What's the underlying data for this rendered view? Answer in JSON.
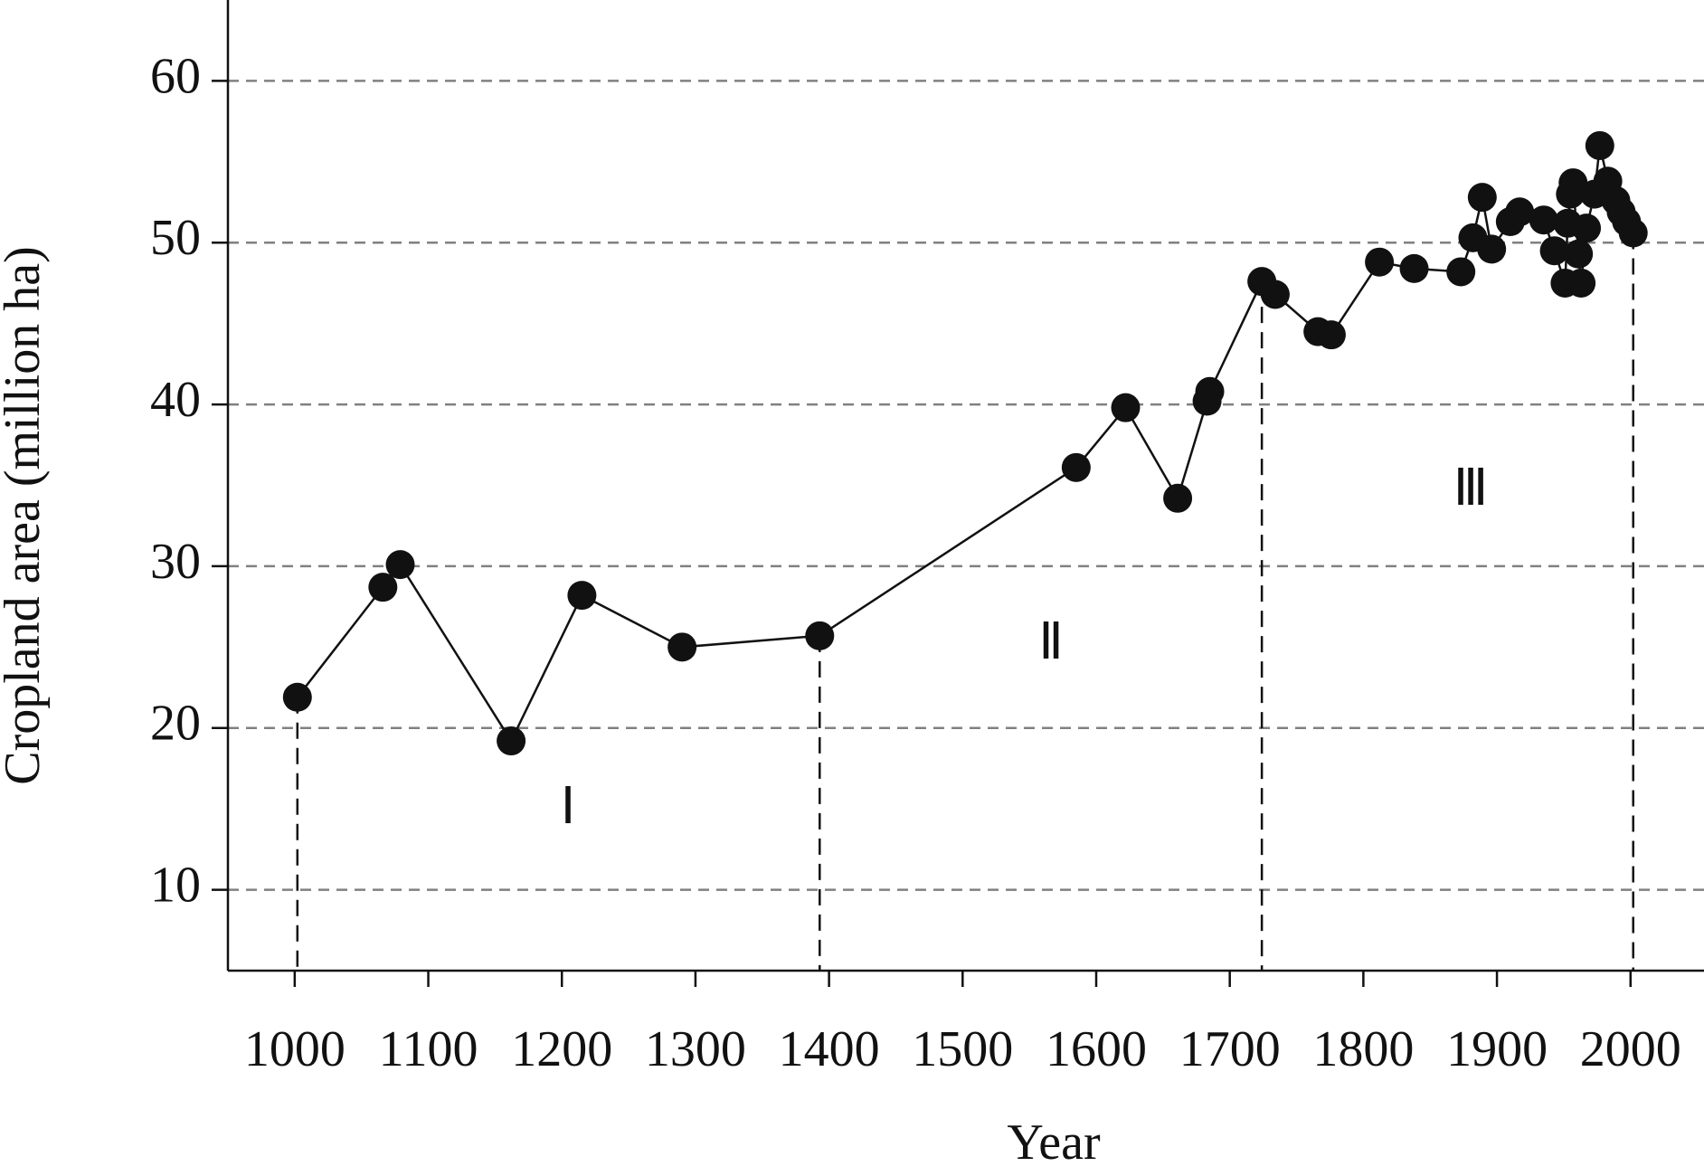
{
  "chart_data": {
    "type": "line",
    "x_label": "Year",
    "y_label": "Cropland area (million ha)",
    "x": [
      1002,
      1066,
      1079,
      1162,
      1215,
      1290,
      1393,
      1585,
      1622,
      1661,
      1683,
      1685,
      1724,
      1734,
      1766,
      1776,
      1812,
      1838,
      1873,
      1882,
      1889,
      1896,
      1910,
      1917,
      1935,
      1943,
      1951,
      1953,
      1955,
      1957,
      1961,
      1963,
      1967,
      1973,
      1977,
      1983,
      1989,
      1993,
      1997,
      2002
    ],
    "values": [
      21.9,
      28.7,
      30.1,
      19.2,
      28.2,
      25.0,
      25.7,
      36.1,
      39.8,
      34.2,
      40.2,
      40.8,
      47.6,
      46.8,
      44.5,
      44.3,
      48.8,
      48.4,
      48.2,
      50.3,
      52.8,
      49.6,
      51.3,
      51.9,
      51.4,
      49.5,
      47.5,
      51.2,
      53.0,
      53.7,
      49.3,
      47.5,
      50.9,
      53.0,
      56.0,
      53.8,
      52.6,
      51.9,
      51.3,
      50.6
    ],
    "color": "#111111",
    "xlim": [
      950,
      2055
    ],
    "xticks": [
      1000,
      1100,
      1200,
      1300,
      1400,
      1500,
      1600,
      1700,
      1800,
      1900,
      2000
    ],
    "ylim": [
      5,
      65
    ],
    "yticks": [
      10,
      20,
      30,
      40,
      50,
      60
    ],
    "grid": true,
    "period_dividers": [
      1002,
      1393,
      1724,
      2002
    ],
    "annotations": [
      "Ⅰ",
      "Ⅱ",
      "Ⅲ"
    ]
  }
}
